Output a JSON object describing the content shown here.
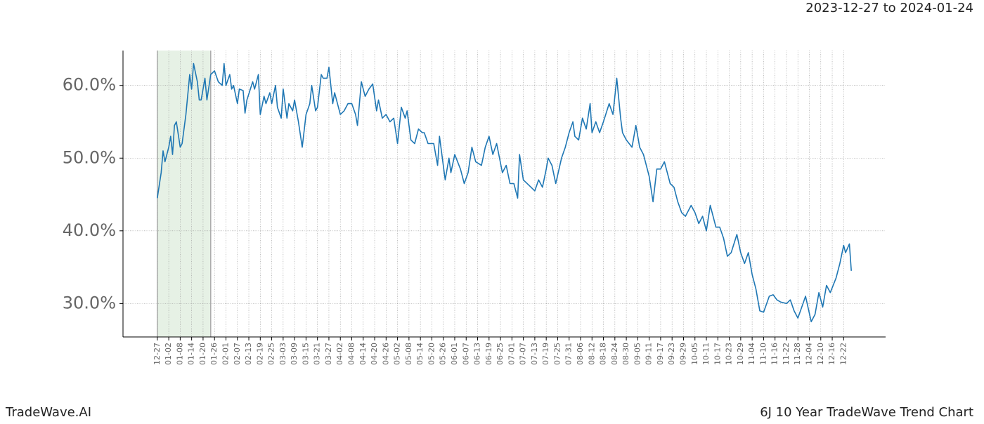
{
  "chart_data": {
    "type": "line",
    "subtitle": "2023-12-27 to 2024-01-24",
    "title": "6J 10 Year TradeWave Trend Chart",
    "brand": "TradeWave.AI",
    "x": [
      0,
      2,
      3,
      4,
      6,
      7,
      8,
      9,
      10,
      12,
      13,
      15,
      17,
      18,
      19,
      21,
      22,
      23,
      25,
      26,
      28,
      30,
      32,
      34,
      35,
      36,
      38,
      39,
      40,
      42,
      43,
      45,
      46,
      47,
      50,
      51,
      53,
      54,
      56,
      57,
      59,
      60,
      62,
      63,
      65,
      66,
      68,
      69,
      71,
      72,
      74,
      76,
      78,
      80,
      81,
      83,
      84,
      86,
      87,
      89,
      90,
      92,
      93,
      96,
      98,
      100,
      102,
      104,
      105,
      107,
      109,
      111,
      113,
      115,
      116,
      118,
      120,
      122,
      124,
      126,
      128,
      130,
      131,
      133,
      135,
      137,
      139,
      140,
      142,
      145,
      147,
      148,
      151,
      153,
      154,
      156,
      159,
      161,
      163,
      165,
      167,
      170,
      172,
      174,
      176,
      178,
      181,
      183,
      185,
      187,
      189,
      190,
      192,
      196,
      198,
      200,
      202,
      204,
      205,
      207,
      209,
      212,
      214,
      216,
      218,
      219,
      221,
      223,
      225,
      227,
      228,
      230,
      232,
      234,
      237,
      239,
      241,
      243,
      244,
      246,
      249,
      251,
      253,
      255,
      258,
      260,
      262,
      264,
      266,
      269,
      271,
      273,
      275,
      277,
      280,
      282,
      284,
      286,
      288,
      290,
      293,
      295,
      297,
      299,
      301,
      304,
      306,
      308,
      310,
      312,
      314,
      316,
      318,
      321,
      323,
      325,
      327,
      330,
      332,
      334,
      336,
      338,
      340,
      343,
      345,
      347,
      349,
      351,
      353,
      356,
      358,
      360,
      361,
      363,
      364
    ],
    "series": [
      {
        "color": "#1f77b4",
        "values": [
          44.5,
          48,
          51,
          49.5,
          51.5,
          53,
          50.5,
          54.5,
          55,
          51.5,
          52,
          56,
          61.5,
          59.5,
          63,
          60.5,
          58,
          58,
          61,
          58,
          61.5,
          62,
          60.5,
          60,
          63,
          60,
          61.5,
          59.5,
          60,
          57.5,
          59.5,
          59.3,
          56.2,
          58,
          60.5,
          59.5,
          61.5,
          56,
          58.5,
          57.5,
          59,
          57.5,
          60,
          57,
          55.5,
          59.5,
          55.5,
          57.5,
          56.5,
          58,
          55,
          51.5,
          56,
          57.5,
          60,
          56.5,
          57,
          61.5,
          61,
          61,
          62.5,
          57.5,
          59,
          56,
          56.5,
          57.5,
          57.5,
          56,
          54.5,
          60.5,
          58.5,
          59.5,
          60.2,
          56.5,
          58,
          55.5,
          56,
          55,
          55.5,
          52,
          57,
          55.5,
          56.5,
          52.5,
          52,
          54,
          53.5,
          53.5,
          52,
          52,
          49,
          53,
          47,
          50,
          48,
          50.5,
          48.5,
          46.5,
          48,
          51.5,
          49.5,
          49,
          51.5,
          53,
          50.5,
          52,
          48,
          49,
          46.5,
          46.5,
          44.5,
          50.5,
          47,
          46,
          45.5,
          47,
          46,
          48.5,
          50,
          49,
          46.5,
          50,
          51.5,
          53.5,
          55,
          53,
          52.5,
          55.5,
          54,
          57.5,
          53.5,
          55,
          53.5,
          55,
          57.5,
          56,
          61,
          55.5,
          53.5,
          52.5,
          51.5,
          54.5,
          51.5,
          50.5,
          47.5,
          44,
          48.5,
          48.5,
          49.5,
          46.5,
          46,
          44,
          42.5,
          42,
          43.5,
          42.5,
          41,
          42,
          40,
          43.5,
          40.5,
          40.5,
          39,
          36.5,
          37,
          39.5,
          37,
          35.5,
          37,
          34,
          32,
          29,
          28.8,
          31,
          31.2,
          30.5,
          30.2,
          30,
          30.5,
          29,
          28,
          29.5,
          31,
          27.5,
          28.5,
          31.5,
          29.5,
          32.5,
          31.5,
          33.5,
          35.5,
          38,
          37,
          38.2,
          34.5
        ]
      }
    ],
    "xlim": [
      -18,
      382
    ],
    "ylim": [
      25.4,
      64.8
    ],
    "yticks": [
      {
        "value": 30,
        "label": "30.0%"
      },
      {
        "value": 40,
        "label": "40.0%"
      },
      {
        "value": 50,
        "label": "50.0%"
      },
      {
        "value": 60,
        "label": "60.0%"
      }
    ],
    "xticks": [
      {
        "value": 0,
        "label": "12-27"
      },
      {
        "value": 6,
        "label": "01-02"
      },
      {
        "value": 12,
        "label": "01-08"
      },
      {
        "value": 18,
        "label": "01-14"
      },
      {
        "value": 24,
        "label": "01-20"
      },
      {
        "value": 30,
        "label": "01-26"
      },
      {
        "value": 36,
        "label": "02-01"
      },
      {
        "value": 42,
        "label": "02-07"
      },
      {
        "value": 48,
        "label": "02-13"
      },
      {
        "value": 54,
        "label": "02-19"
      },
      {
        "value": 60,
        "label": "02-25"
      },
      {
        "value": 66,
        "label": "03-03"
      },
      {
        "value": 72,
        "label": "03-09"
      },
      {
        "value": 78,
        "label": "03-15"
      },
      {
        "value": 84,
        "label": "03-21"
      },
      {
        "value": 90,
        "label": "03-27"
      },
      {
        "value": 96,
        "label": "04-02"
      },
      {
        "value": 102,
        "label": "04-08"
      },
      {
        "value": 108,
        "label": "04-14"
      },
      {
        "value": 114,
        "label": "04-20"
      },
      {
        "value": 120,
        "label": "04-26"
      },
      {
        "value": 126,
        "label": "05-02"
      },
      {
        "value": 132,
        "label": "05-08"
      },
      {
        "value": 138,
        "label": "05-14"
      },
      {
        "value": 144,
        "label": "05-20"
      },
      {
        "value": 150,
        "label": "05-26"
      },
      {
        "value": 156,
        "label": "06-01"
      },
      {
        "value": 162,
        "label": "06-07"
      },
      {
        "value": 168,
        "label": "06-13"
      },
      {
        "value": 174,
        "label": "06-19"
      },
      {
        "value": 180,
        "label": "06-25"
      },
      {
        "value": 186,
        "label": "07-01"
      },
      {
        "value": 192,
        "label": "07-07"
      },
      {
        "value": 198,
        "label": "07-13"
      },
      {
        "value": 204,
        "label": "07-19"
      },
      {
        "value": 210,
        "label": "07-25"
      },
      {
        "value": 216,
        "label": "07-31"
      },
      {
        "value": 222,
        "label": "08-06"
      },
      {
        "value": 228,
        "label": "08-12"
      },
      {
        "value": 234,
        "label": "08-18"
      },
      {
        "value": 240,
        "label": "08-24"
      },
      {
        "value": 246,
        "label": "08-30"
      },
      {
        "value": 252,
        "label": "09-05"
      },
      {
        "value": 258,
        "label": "09-11"
      },
      {
        "value": 264,
        "label": "09-17"
      },
      {
        "value": 270,
        "label": "09-23"
      },
      {
        "value": 276,
        "label": "09-29"
      },
      {
        "value": 282,
        "label": "10-05"
      },
      {
        "value": 288,
        "label": "10-11"
      },
      {
        "value": 294,
        "label": "10-17"
      },
      {
        "value": 300,
        "label": "10-23"
      },
      {
        "value": 306,
        "label": "10-29"
      },
      {
        "value": 312,
        "label": "11-04"
      },
      {
        "value": 318,
        "label": "11-10"
      },
      {
        "value": 324,
        "label": "11-16"
      },
      {
        "value": 330,
        "label": "11-22"
      },
      {
        "value": 336,
        "label": "11-28"
      },
      {
        "value": 342,
        "label": "12-04"
      },
      {
        "value": 348,
        "label": "12-10"
      },
      {
        "value": 354,
        "label": "12-16"
      },
      {
        "value": 360,
        "label": "12-22"
      }
    ],
    "shaded_range": [
      0,
      28
    ],
    "shade_color": "#d5e8d4",
    "grid": true
  }
}
